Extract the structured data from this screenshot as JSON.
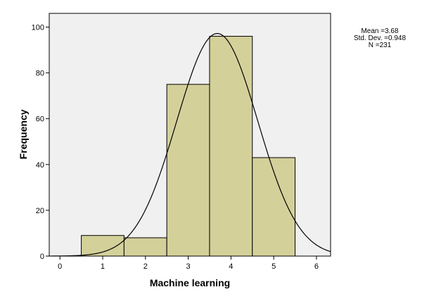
{
  "chart_data": {
    "type": "bar",
    "subtype": "histogram",
    "xlabel": "Machine learning",
    "ylabel": "Frequency",
    "xlim": [
      -0.25,
      6.33
    ],
    "ylim": [
      0,
      106
    ],
    "x_ticks": [
      0,
      1,
      2,
      3,
      4,
      5,
      6
    ],
    "y_ticks": [
      0,
      20,
      40,
      60,
      80,
      100
    ],
    "bins": [
      {
        "center": 1,
        "range": [
          0.5,
          1.5
        ],
        "frequency": 9
      },
      {
        "center": 2,
        "range": [
          1.5,
          2.5
        ],
        "frequency": 8
      },
      {
        "center": 3,
        "range": [
          2.5,
          3.5
        ],
        "frequency": 75
      },
      {
        "center": 4,
        "range": [
          3.5,
          4.5
        ],
        "frequency": 96
      },
      {
        "center": 5,
        "range": [
          4.5,
          5.5
        ],
        "frequency": 43
      }
    ],
    "normal_curve": {
      "mean": 3.68,
      "std_dev": 0.948,
      "n": 231,
      "bin_width": 1
    },
    "grid": false,
    "colors": {
      "bar_fill": "#d4d09a",
      "plot_background": "#f0f0f0",
      "stroke": "#000000"
    }
  },
  "stats": {
    "mean_text": "Mean =3.68",
    "sd_text": "Std. Dev. =0.948",
    "n_text": "N =231"
  }
}
